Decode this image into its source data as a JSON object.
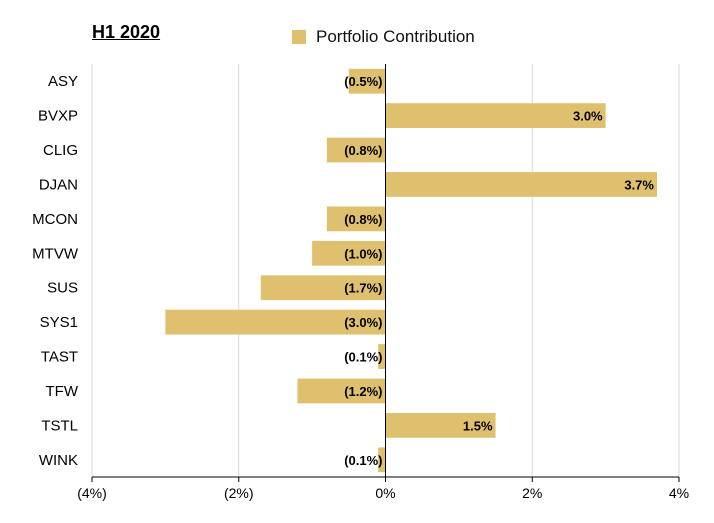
{
  "title": "H1 2020",
  "legend": {
    "label": "Portfolio Contribution"
  },
  "colors": {
    "bar": "#dfc06f",
    "grid": "#d9d9d9",
    "axis": "#000000",
    "text": "#000000"
  },
  "chart_data": {
    "type": "bar",
    "orientation": "horizontal",
    "title": "H1 2020",
    "categories": [
      "ASY",
      "BVXP",
      "CLIG",
      "DJAN",
      "MCON",
      "MTVW",
      "SUS",
      "SYS1",
      "TAST",
      "TFW",
      "TSTL",
      "WINK"
    ],
    "series": [
      {
        "name": "Portfolio Contribution",
        "values": [
          -0.5,
          3.0,
          -0.8,
          3.7,
          -0.8,
          -1.0,
          -1.7,
          -3.0,
          -0.1,
          -1.2,
          1.5,
          -0.1
        ],
        "value_units": "%",
        "labels": [
          "(0.5%)",
          "3.0%",
          "(0.8%)",
          "3.7%",
          "(0.8%)",
          "(1.0%)",
          "(1.7%)",
          "(3.0%)",
          "(0.1%)",
          "(1.2%)",
          "1.5%",
          "(0.1%)"
        ]
      }
    ],
    "xlim": [
      -4,
      4
    ],
    "xticks": [
      -4,
      -2,
      0,
      2,
      4
    ],
    "xtick_labels": [
      "(4%)",
      "(2%)",
      "0%",
      "2%",
      "4%"
    ],
    "grid": true,
    "legend_position": "top"
  }
}
